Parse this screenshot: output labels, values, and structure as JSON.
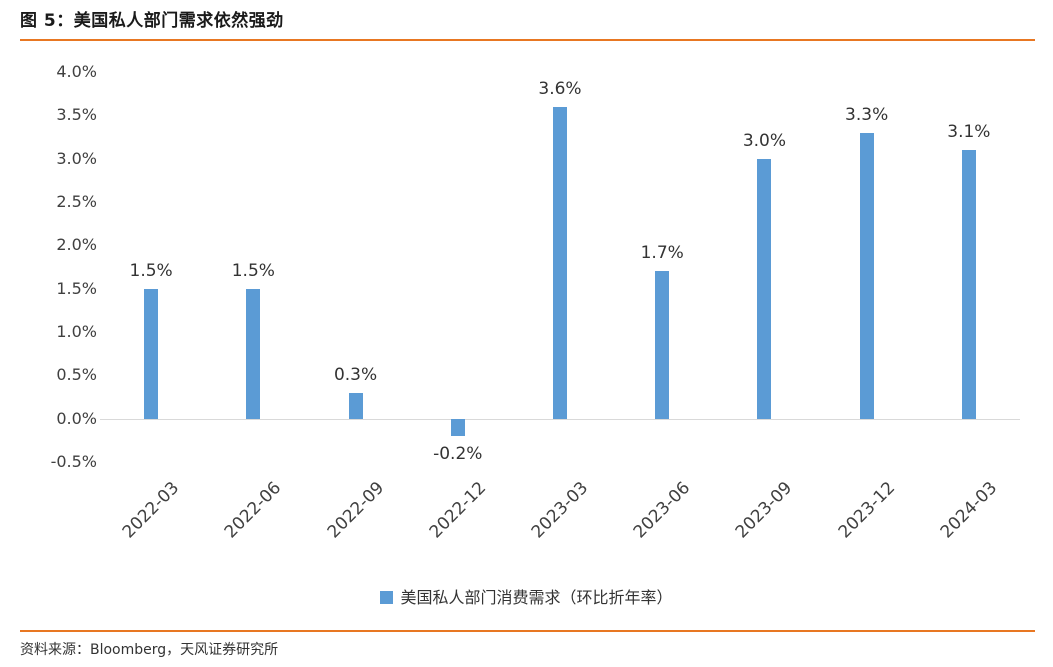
{
  "header": {
    "title": "图 5：美国私人部门需求依然强劲"
  },
  "footer": {
    "source": "资料来源：Bloomberg，天风证券研究所"
  },
  "colors": {
    "accent": "#E87722",
    "bar": "#5B9BD5",
    "zero_line": "#D9D9D9",
    "axis_text": "#404040"
  },
  "chart_data": {
    "type": "bar",
    "title": "图 5：美国私人部门需求依然强劲",
    "categories": [
      "2022-03",
      "2022-06",
      "2022-09",
      "2022-12",
      "2023-03",
      "2023-06",
      "2023-09",
      "2023-12",
      "2024-03"
    ],
    "values": [
      1.5,
      1.5,
      0.3,
      -0.2,
      3.6,
      1.7,
      3.0,
      3.3,
      3.1
    ],
    "labels": [
      "1.5%",
      "1.5%",
      "0.3%",
      "-0.2%",
      "3.6%",
      "1.7%",
      "3.0%",
      "3.3%",
      "3.1%"
    ],
    "ylim": [
      -0.5,
      4.0
    ],
    "ytick_labels": [
      "4.0%",
      "3.5%",
      "3.0%",
      "2.5%",
      "2.0%",
      "1.5%",
      "1.0%",
      "0.5%",
      "0.0%",
      "-0.5%"
    ],
    "legend_label": "美国私人部门消费需求（环比折年率）",
    "grid": "zero-line-only",
    "legend_position": "bottom-center",
    "xlabel": "",
    "ylabel": ""
  }
}
